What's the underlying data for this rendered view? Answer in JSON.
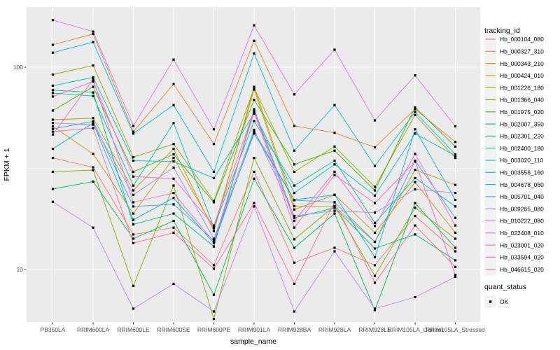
{
  "figure": {
    "y_axis": {
      "label": "FPKM + 1",
      "tick_labels": [
        "100",
        "10"
      ]
    },
    "x_axis": {
      "label": "sample_name"
    },
    "legend": {
      "tracking_title": "tracking_id",
      "quant_title": "quant_status",
      "quant_items": [
        {
          "label": "OK",
          "marker": "black-square"
        }
      ]
    }
  },
  "colors": {
    "panel_bg": "#EBEBEB",
    "grid": "#FFFFFF",
    "axis_text": "#4D4D4D",
    "tick_mark": "#333333",
    "text": "#000000",
    "legend_key_bg": "#F2F2F2",
    "point": "#000000"
  },
  "chart_data": {
    "type": "line",
    "title": "",
    "xlabel": "sample_name",
    "ylabel": "FPKM + 1",
    "y_scale": "log10",
    "ylim": [
      5.5,
      200
    ],
    "y_ticks": [
      {
        "label": "100",
        "value": 100
      },
      {
        "label": "10",
        "value": 10
      }
    ],
    "y_minor_ticks": [
      31.6
    ],
    "grid": true,
    "legend_position": "right",
    "point_marker": {
      "label": "OK",
      "shape": "square",
      "color": "#000000"
    },
    "categories": [
      "PB350LA",
      "RRIM600LA",
      "RRIM600LE",
      "RRIM600SE",
      "RRIM600PE",
      "RRIM901LA",
      "RRIM928BA",
      "RRIM928LA",
      "RRIM928LE",
      "RRIM105LA_Control",
      "RRIM105LA_Stressed"
    ],
    "series": [
      {
        "name": "Hb_000104_080",
        "color": "#F8766D",
        "values": [
          35.6,
          32.0,
          14.9,
          16.1,
          10.5,
          30.4,
          10.8,
          12.8,
          10.5,
          18.4,
          12.3
        ]
      },
      {
        "name": "Hb_000327_310",
        "color": "#EA8331",
        "values": [
          129,
          146,
          48.0,
          82.6,
          41.7,
          135,
          51.3,
          47.4,
          40.2,
          62.0,
          42.7
        ]
      },
      {
        "name": "Hb_000343_210",
        "color": "#D89000",
        "values": [
          51.0,
          37.3,
          18.9,
          35.6,
          16.0,
          77.5,
          19.8,
          23.4,
          15.2,
          27.0,
          15.2
        ]
      },
      {
        "name": "Hb_000424_010",
        "color": "#C09B00",
        "values": [
          55.0,
          56.0,
          24.6,
          39.5,
          15.5,
          80.0,
          20.6,
          20.5,
          13.7,
          31.1,
          26.2
        ]
      },
      {
        "name": "Hb_001226_180",
        "color": "#A3A500",
        "values": [
          92.0,
          102,
          35.9,
          41.7,
          21.8,
          79.0,
          30.4,
          40.5,
          25.6,
          58.0,
          35.6
        ]
      },
      {
        "name": "Hb_001366_040",
        "color": "#7CAE00",
        "values": [
          30.4,
          31.0,
          8.3,
          26.0,
          5.7,
          35.6,
          14.1,
          20.6,
          9.3,
          20.2,
          14.2
        ]
      },
      {
        "name": "Hb_001975_020",
        "color": "#39B600",
        "values": [
          61.0,
          80.0,
          30.4,
          37.1,
          21.5,
          69.0,
          33.1,
          38.7,
          24.6,
          63.3,
          40.5
        ]
      },
      {
        "name": "Hb_002007_350",
        "color": "#00BB4E",
        "values": [
          25.0,
          27.2,
          14.2,
          17.4,
          7.5,
          28.1,
          12.8,
          18.9,
          6.3,
          21.3,
          12.8
        ]
      },
      {
        "name": "Hb_002301_220",
        "color": "#00BF7D",
        "values": [
          77.0,
          75.0,
          16.7,
          18.9,
          13.0,
          62.0,
          18.0,
          20.2,
          12.7,
          14.9,
          11.1
        ]
      },
      {
        "name": "Hb_002400_180",
        "color": "#00C1A3",
        "values": [
          74.5,
          72.0,
          26.0,
          53.0,
          16.2,
          54.2,
          26.0,
          34.5,
          17.0,
          28.3,
          20.5
        ]
      },
      {
        "name": "Hb_003020_110",
        "color": "#00BFC4",
        "values": [
          81.0,
          89.0,
          34.5,
          34.2,
          28.3,
          59.0,
          23.9,
          33.1,
          23.2,
          47.0,
          36.5
        ]
      },
      {
        "name": "Hb_003556_160",
        "color": "#00BAE0",
        "values": [
          118,
          133,
          47.0,
          65.0,
          30.4,
          117,
          38.7,
          65.0,
          32.5,
          60.0,
          37.1
        ]
      },
      {
        "name": "Hb_004678_060",
        "color": "#00B0F6",
        "values": [
          39.5,
          53.0,
          17.6,
          22.6,
          13.5,
          48.0,
          22.1,
          23.4,
          11.5,
          49.3,
          22.1
        ]
      },
      {
        "name": "Hb_005701_040",
        "color": "#35A2FF",
        "values": [
          49.5,
          54.0,
          20.5,
          21.0,
          13.9,
          47.0,
          22.0,
          21.5,
          13.7,
          34.5,
          18.0
        ]
      },
      {
        "name": "Hb_009265_080",
        "color": "#9590FF",
        "values": [
          53.0,
          52.0,
          23.4,
          31.9,
          14.2,
          49.0,
          18.4,
          19.5,
          19.1,
          24.9,
          23.9
        ]
      },
      {
        "name": "Hb_010222_080",
        "color": "#E76BF3",
        "values": [
          171,
          150,
          51.3,
          109,
          49.3,
          161,
          73.4,
          122,
          54.6,
          91.0,
          51.0
        ]
      },
      {
        "name": "Hb_022408_010",
        "color": "#C77CFF",
        "values": [
          21.6,
          16.1,
          6.4,
          8.5,
          6.2,
          20.5,
          6.2,
          12.3,
          6.4,
          7.3,
          9.2
        ]
      },
      {
        "name": "Hb_023001_020",
        "color": "#FA62DB",
        "values": [
          71.6,
          85.0,
          28.8,
          28.1,
          16.5,
          61.0,
          17.4,
          30.4,
          16.4,
          37.3,
          16.5
        ]
      },
      {
        "name": "Hb_033594_020",
        "color": "#FF61CC",
        "values": [
          46.5,
          87.0,
          21.5,
          23.9,
          13.7,
          60.0,
          16.1,
          29.3,
          21.3,
          34.2,
          9.4
        ]
      },
      {
        "name": "Hb_046615_020",
        "color": "#FF6A98",
        "values": [
          48.0,
          50.0,
          13.5,
          15.2,
          10.1,
          21.3,
          8.5,
          21.5,
          8.6,
          16.5,
          10.3
        ]
      }
    ]
  }
}
